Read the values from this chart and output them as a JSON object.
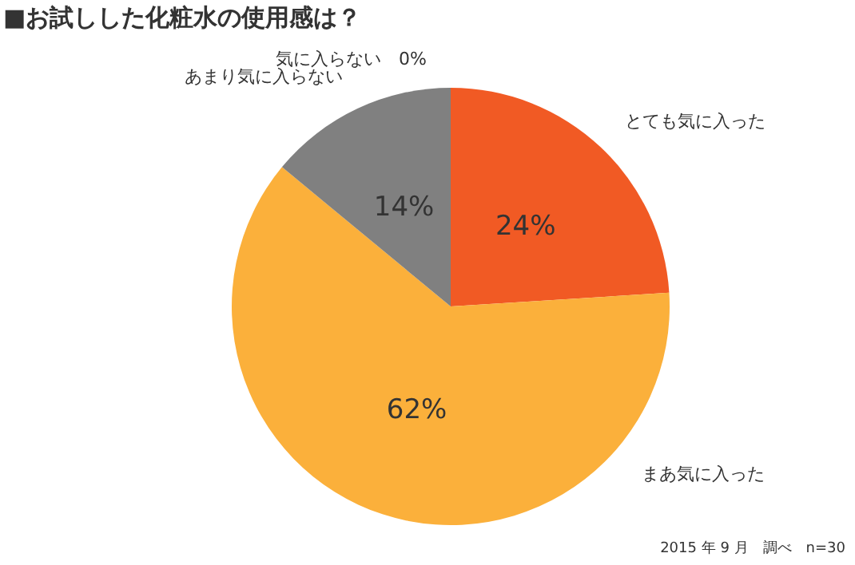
{
  "chart_data": {
    "type": "pie",
    "title": "■お試しした化粧水の使用感は？",
    "categories": [
      "とても気に入った",
      "まあ気に入った",
      "あまり気に入らない",
      "気に入らない"
    ],
    "values": [
      24,
      62,
      14,
      0
    ],
    "colors": [
      "#f15a24",
      "#fbb03b",
      "#808080",
      "#595959"
    ],
    "value_labels": [
      "24%",
      "62%",
      "14%",
      "0%"
    ],
    "legend": false,
    "annotations": [
      "2015 年 9 月　調べ　n=30"
    ]
  }
}
